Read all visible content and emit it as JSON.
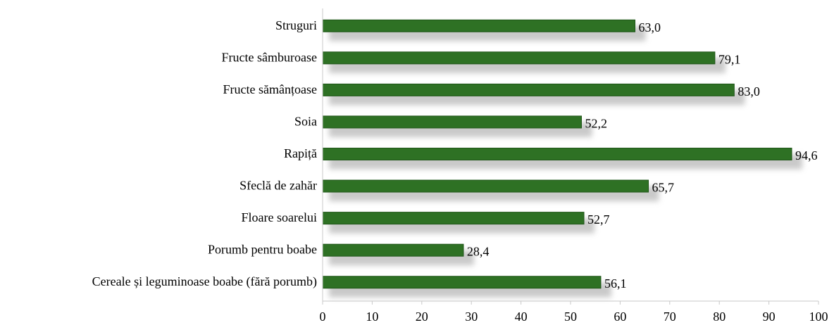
{
  "chart_data": {
    "type": "bar",
    "orientation": "horizontal",
    "categories": [
      "Struguri",
      "Fructe sâmburoase",
      "Fructe sămânțoase",
      "Soia",
      "Rapiță",
      "Sfeclă de zahăr",
      "Floare soarelui",
      "Porumb pentru boabe",
      "Cereale și leguminoase boabe (fără porumb)"
    ],
    "values": [
      63.0,
      79.1,
      83.0,
      52.2,
      94.6,
      65.7,
      52.7,
      28.4,
      56.1
    ],
    "value_labels": [
      "63,0",
      "79,1",
      "83,0",
      "52,2",
      "94,6",
      "65,7",
      "52,7",
      "28,4",
      "56,1"
    ],
    "xlim": [
      0,
      100
    ],
    "x_ticks": [
      0,
      10,
      20,
      30,
      40,
      50,
      60,
      70,
      80,
      90,
      100
    ],
    "grid": false,
    "legend": "none",
    "bar_color": "#2e7124",
    "bar_border_color": "#1f5518",
    "shadow_color": "#9e9e9e",
    "axis_color": "#c8c8c8"
  }
}
